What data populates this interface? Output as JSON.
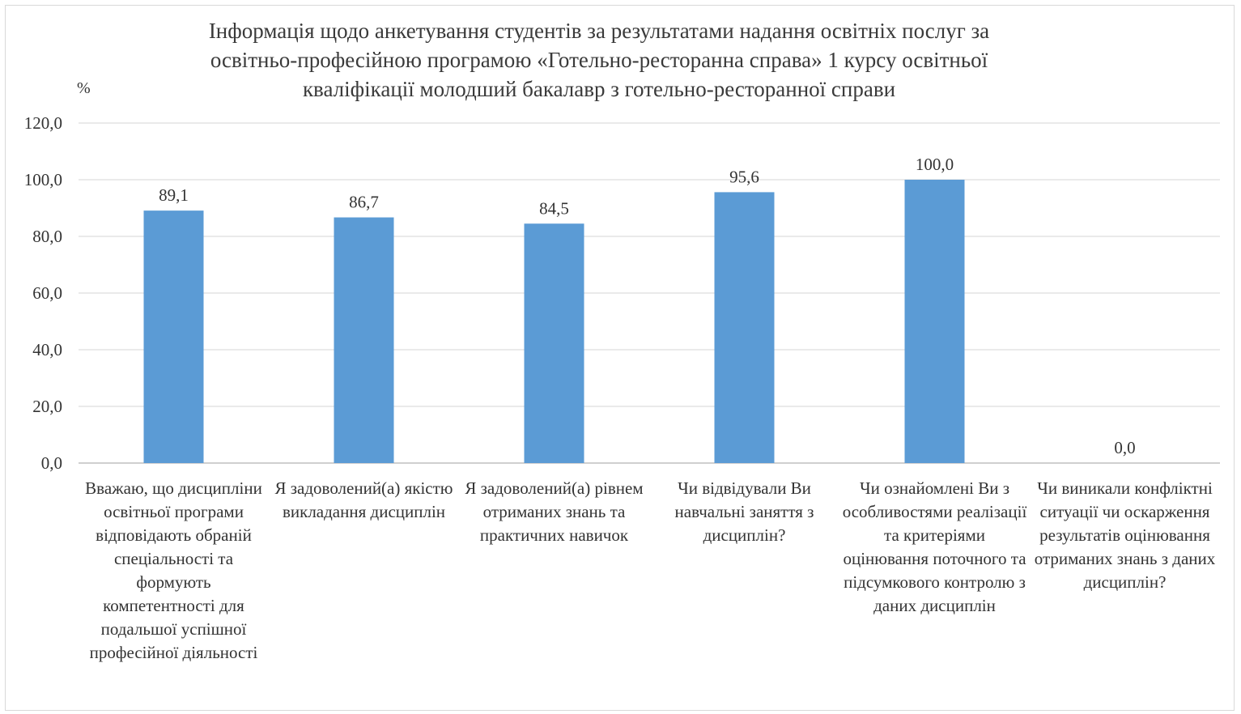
{
  "chart_data": {
    "type": "bar",
    "title_lines": [
      "Інформація щодо анкетування студентів за результатами надання освітніх послуг за",
      "освітньо-професійною програмою «Готельно-ресторанна справа» 1 курсу освітньої",
      "кваліфікації молодший бакалавр з готельно-ресторанної справи"
    ],
    "ylabel": "%",
    "xlabel": "",
    "ylim": [
      0,
      120
    ],
    "yticks": [
      "0,0",
      "20,0",
      "40,0",
      "60,0",
      "80,0",
      "100,0",
      "120,0"
    ],
    "grid": true,
    "bar_color": "#5b9bd5",
    "categories": [
      "Вважаю, що дисципліни освітньої програми відповідають обраній спеціальності та формують компетентності для подальшої успішної професійної діяльності",
      "Я задоволений(а) якістю викладання дисциплін",
      "Я задоволений(а) рівнем отриманих знань та практичних навичок",
      "Чи відвідували Ви навчальні заняття з дисциплін?",
      "Чи ознайомлені Ви з особливостями реалізації та критеріями оцінювання поточного та підсумкового контролю з даних дисциплін",
      "Чи виникали конфліктні ситуації чи оскарження результатів оцінювання отриманих знань з даних дисциплін?"
    ],
    "values": [
      89.1,
      86.7,
      84.5,
      95.6,
      100.0,
      0.0
    ],
    "data_labels": [
      "89,1",
      "86,7",
      "84,5",
      "95,6",
      "100,0",
      "0,0"
    ]
  }
}
